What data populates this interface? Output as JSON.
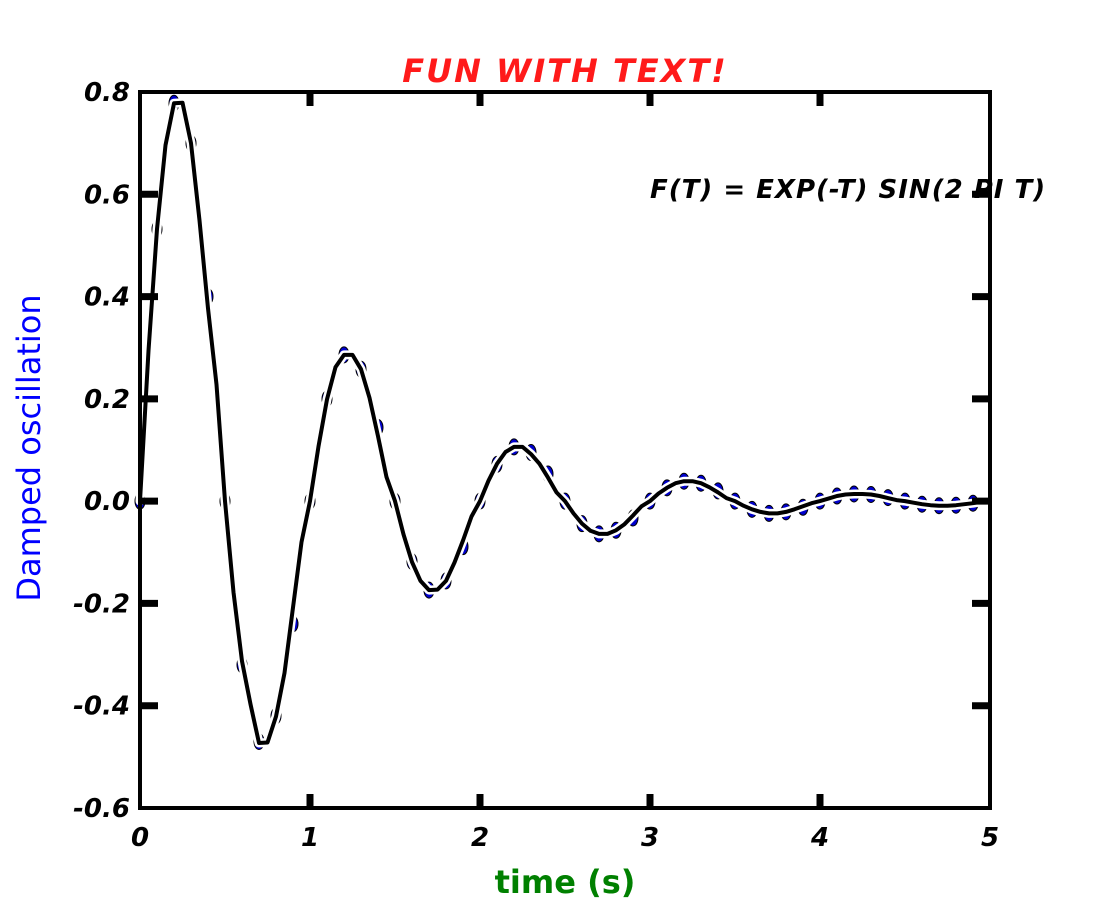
{
  "chart_data": {
    "type": "line",
    "title": "FUN WITH TEXT!",
    "xlabel": "time (s)",
    "ylabel": "Damped oscillation",
    "annotation": "F(T) = EXP(-T) SIN(2 PI T)",
    "xlim": [
      0,
      5
    ],
    "ylim": [
      -0.6,
      0.8
    ],
    "x_ticks": [
      0,
      1,
      2,
      3,
      4,
      5
    ],
    "x_tick_labels": [
      "0",
      "1",
      "2",
      "3",
      "4",
      "5"
    ],
    "y_ticks": [
      -0.6,
      -0.4,
      -0.2,
      0.0,
      0.2,
      0.4,
      0.6,
      0.8
    ],
    "y_tick_labels": [
      "-0.6",
      "-0.4",
      "-0.2",
      "0.0",
      "0.2",
      "0.4",
      "0.6",
      "0.8"
    ],
    "grid": false,
    "legend": false,
    "series": [
      {
        "style": "solid-line",
        "color": "#000000",
        "x": [
          0.0,
          0.05,
          0.1,
          0.15,
          0.2,
          0.25,
          0.3,
          0.35,
          0.4,
          0.45,
          0.5,
          0.55,
          0.6,
          0.65,
          0.7,
          0.75,
          0.8,
          0.85,
          0.9,
          0.95,
          1.0,
          1.05,
          1.1,
          1.15,
          1.2,
          1.25,
          1.3,
          1.35,
          1.4,
          1.45,
          1.5,
          1.55,
          1.6,
          1.65,
          1.7,
          1.75,
          1.8,
          1.85,
          1.9,
          1.95,
          2.0,
          2.05,
          2.1,
          2.15,
          2.2,
          2.25,
          2.3,
          2.35,
          2.4,
          2.45,
          2.5,
          2.55,
          2.6,
          2.65,
          2.7,
          2.75,
          2.8,
          2.85,
          2.9,
          2.95,
          3.0,
          3.05,
          3.1,
          3.15,
          3.2,
          3.25,
          3.3,
          3.35,
          3.4,
          3.45,
          3.5,
          3.55,
          3.6,
          3.65,
          3.7,
          3.75,
          3.8,
          3.85,
          3.9,
          3.95,
          4.0,
          4.05,
          4.1,
          4.15,
          4.2,
          4.25,
          4.3,
          4.35,
          4.4,
          4.45,
          4.5,
          4.55,
          4.6,
          4.65,
          4.7,
          4.75,
          4.8,
          4.85,
          4.9,
          4.95
        ],
        "y": [
          0.0,
          0.294,
          0.532,
          0.696,
          0.778,
          0.779,
          0.7,
          0.549,
          0.377,
          0.228,
          0.0,
          -0.178,
          -0.313,
          -0.397,
          -0.473,
          -0.472,
          -0.421,
          -0.336,
          -0.208,
          -0.08,
          0.0,
          0.107,
          0.199,
          0.262,
          0.286,
          0.286,
          0.258,
          0.202,
          0.127,
          0.047,
          0.0,
          -0.065,
          -0.119,
          -0.156,
          -0.174,
          -0.173,
          -0.156,
          -0.12,
          -0.077,
          -0.03,
          0.0,
          0.04,
          0.073,
          0.096,
          0.106,
          0.106,
          0.092,
          0.073,
          0.046,
          0.017,
          0.0,
          -0.024,
          -0.044,
          -0.058,
          -0.064,
          -0.064,
          -0.057,
          -0.045,
          -0.028,
          -0.01,
          0.0,
          0.015,
          0.026,
          0.035,
          0.039,
          0.039,
          0.035,
          0.027,
          0.017,
          0.006,
          0.0,
          -0.009,
          -0.016,
          -0.021,
          -0.024,
          -0.024,
          -0.021,
          -0.016,
          -0.01,
          -0.004,
          0.0,
          0.005,
          0.01,
          0.013,
          0.014,
          0.014,
          0.013,
          0.01,
          0.006,
          0.002,
          0.0,
          -0.003,
          -0.006,
          -0.008,
          -0.009,
          -0.009,
          -0.008,
          -0.006,
          -0.004,
          -0.001
        ]
      },
      {
        "style": "dots",
        "color": "#0000cc",
        "x": [
          0.0,
          0.1,
          0.2,
          0.3,
          0.4,
          0.5,
          0.6,
          0.7,
          0.8,
          0.9,
          1.0,
          1.1,
          1.2,
          1.3,
          1.4,
          1.5,
          1.6,
          1.7,
          1.8,
          1.9,
          2.0,
          2.1,
          2.2,
          2.3,
          2.4,
          2.5,
          2.6,
          2.7,
          2.8,
          2.9,
          3.0,
          3.1,
          3.2,
          3.3,
          3.4,
          3.5,
          3.6,
          3.7,
          3.8,
          3.9,
          4.0,
          4.1,
          4.2,
          4.3,
          4.4,
          4.5,
          4.6,
          4.7,
          4.8,
          4.9
        ],
        "y": [
          0.0,
          0.532,
          0.778,
          0.7,
          0.4,
          0.0,
          -0.32,
          -0.47,
          -0.42,
          -0.24,
          0.0,
          0.2,
          0.286,
          0.258,
          0.144,
          0.0,
          -0.118,
          -0.174,
          -0.156,
          -0.089,
          0.0,
          0.072,
          0.106,
          0.095,
          0.053,
          0.0,
          -0.044,
          -0.064,
          -0.057,
          -0.033,
          0.0,
          0.026,
          0.039,
          0.035,
          0.02,
          0.0,
          -0.016,
          -0.024,
          -0.021,
          -0.012,
          0.0,
          0.01,
          0.014,
          0.013,
          0.007,
          0.0,
          -0.006,
          -0.009,
          -0.008,
          -0.004
        ]
      }
    ]
  }
}
